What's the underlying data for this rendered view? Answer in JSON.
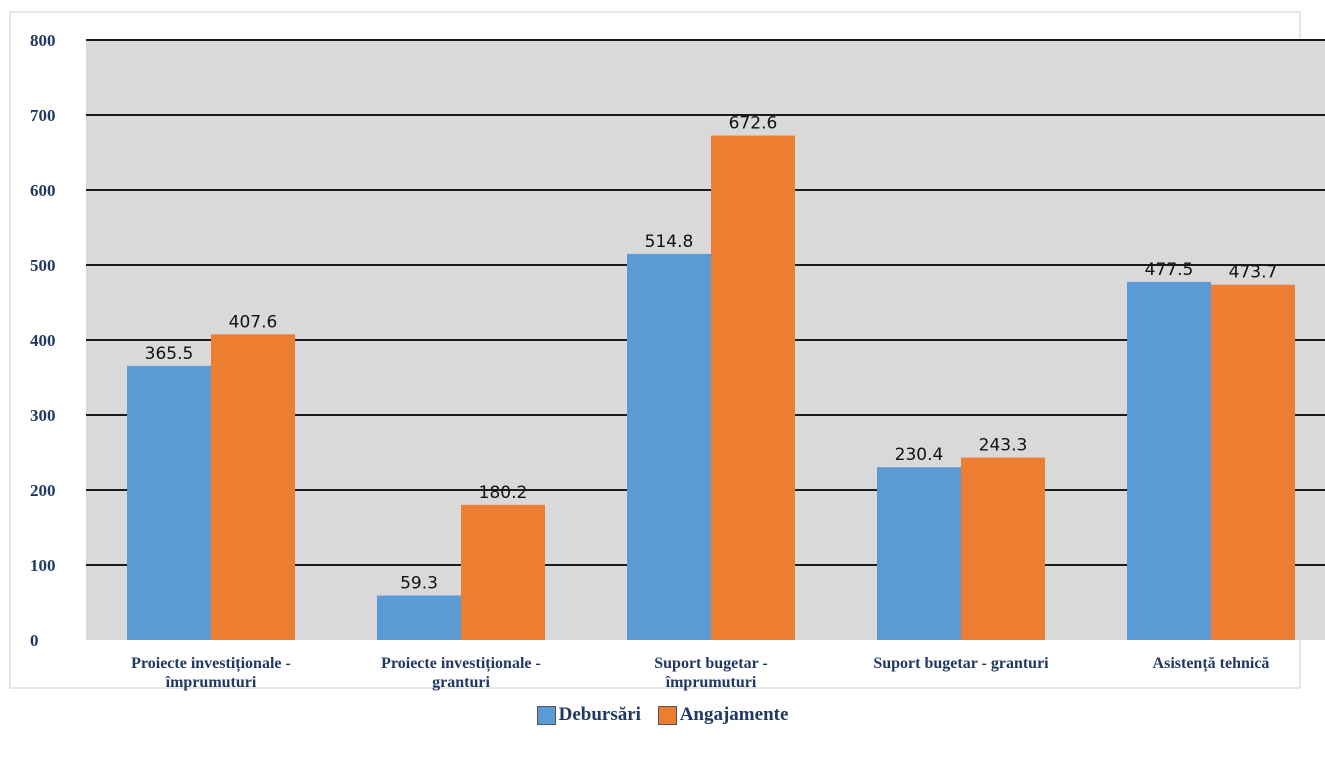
{
  "chart_data": {
    "type": "bar",
    "title": "",
    "xlabel": "",
    "ylabel": "",
    "ylim": [
      0,
      800
    ],
    "yticks": [
      0,
      100,
      200,
      300,
      400,
      500,
      600,
      700,
      800
    ],
    "categories": [
      [
        "Proiecte investiționale -",
        "împrumuturi"
      ],
      [
        "Proiecte investiționale -",
        "granturi"
      ],
      [
        "Suport bugetar -",
        "împrumuturi"
      ],
      [
        "Suport bugetar - granturi"
      ],
      [
        "Asistență tehnică"
      ]
    ],
    "series": [
      {
        "name": "Debursări",
        "color": "#5b9bd5",
        "values": [
          365.5,
          59.3,
          514.8,
          230.4,
          477.5
        ],
        "labels": [
          "365.5",
          "59.3",
          "514.8",
          "230.4",
          "477.5"
        ]
      },
      {
        "name": "Angajamente",
        "color": "#ed7d31",
        "values": [
          407.6,
          180.2,
          672.6,
          243.3,
          473.7
        ],
        "labels": [
          "407.6",
          "180.2",
          "672.6",
          "243.3",
          "473.7"
        ]
      }
    ],
    "grid": true,
    "legend_position": "bottom"
  },
  "legend": {
    "items": [
      {
        "label": "Debursări",
        "color": "#5b9bd5"
      },
      {
        "label": "Angajamente",
        "color": "#ed7d31"
      }
    ]
  }
}
